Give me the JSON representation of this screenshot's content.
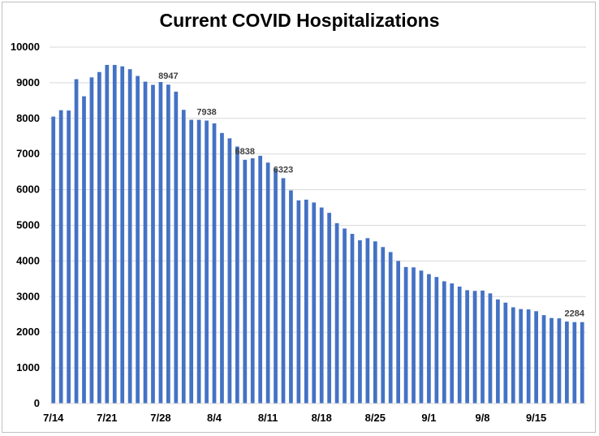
{
  "chart_data": {
    "type": "bar",
    "title": "Current COVID Hospitalizations",
    "xlabel": "",
    "ylabel": "",
    "ylim": [
      0,
      10000
    ],
    "yticks": [
      0,
      1000,
      2000,
      3000,
      4000,
      5000,
      6000,
      7000,
      8000,
      9000,
      10000
    ],
    "grid": true,
    "bar_color": "#4472c4",
    "categories": [
      "7/14",
      "7/15",
      "7/16",
      "7/17",
      "7/18",
      "7/19",
      "7/20",
      "7/21",
      "7/22",
      "7/23",
      "7/24",
      "7/25",
      "7/26",
      "7/27",
      "7/28",
      "7/29",
      "7/30",
      "7/31",
      "8/1",
      "8/2",
      "8/3",
      "8/4",
      "8/5",
      "8/6",
      "8/7",
      "8/8",
      "8/9",
      "8/10",
      "8/11",
      "8/12",
      "8/13",
      "8/14",
      "8/15",
      "8/16",
      "8/17",
      "8/18",
      "8/19",
      "8/20",
      "8/21",
      "8/22",
      "8/23",
      "8/24",
      "8/25",
      "8/26",
      "8/27",
      "8/28",
      "8/29",
      "8/30",
      "8/31",
      "9/1",
      "9/2",
      "9/3",
      "9/4",
      "9/5",
      "9/6",
      "9/7",
      "9/8",
      "9/9",
      "9/10",
      "9/11",
      "9/12",
      "9/13",
      "9/14",
      "9/15",
      "9/16",
      "9/17",
      "9/18",
      "9/19",
      "9/20",
      "9/21"
    ],
    "values": [
      8050,
      8230,
      8220,
      9100,
      8620,
      9150,
      9300,
      9500,
      9500,
      9460,
      9380,
      9190,
      9030,
      8940,
      9020,
      8947,
      8750,
      8240,
      7960,
      7960,
      7938,
      7860,
      7590,
      7440,
      7210,
      6838,
      6880,
      6950,
      6760,
      6600,
      6323,
      5980,
      5700,
      5720,
      5640,
      5500,
      5350,
      5060,
      4910,
      4760,
      4580,
      4640,
      4550,
      4390,
      4250,
      4000,
      3830,
      3820,
      3730,
      3630,
      3550,
      3430,
      3370,
      3280,
      3180,
      3160,
      3170,
      3090,
      2920,
      2830,
      2700,
      2650,
      2640,
      2590,
      2480,
      2400,
      2390,
      2300,
      2284,
      2284
    ],
    "x_tick_labels": [
      "7/14",
      "7/21",
      "7/28",
      "8/4",
      "8/11",
      "8/18",
      "8/25",
      "9/1",
      "9/8",
      "9/15"
    ],
    "data_labels": [
      {
        "category": "7/29",
        "value": 8947,
        "text": "8947"
      },
      {
        "category": "8/3",
        "value": 7938,
        "text": "7938"
      },
      {
        "category": "8/8",
        "value": 6838,
        "text": "6838"
      },
      {
        "category": "8/13",
        "value": 6323,
        "text": "6323"
      },
      {
        "category": "9/21",
        "value": 2284,
        "text": "2284"
      }
    ]
  }
}
